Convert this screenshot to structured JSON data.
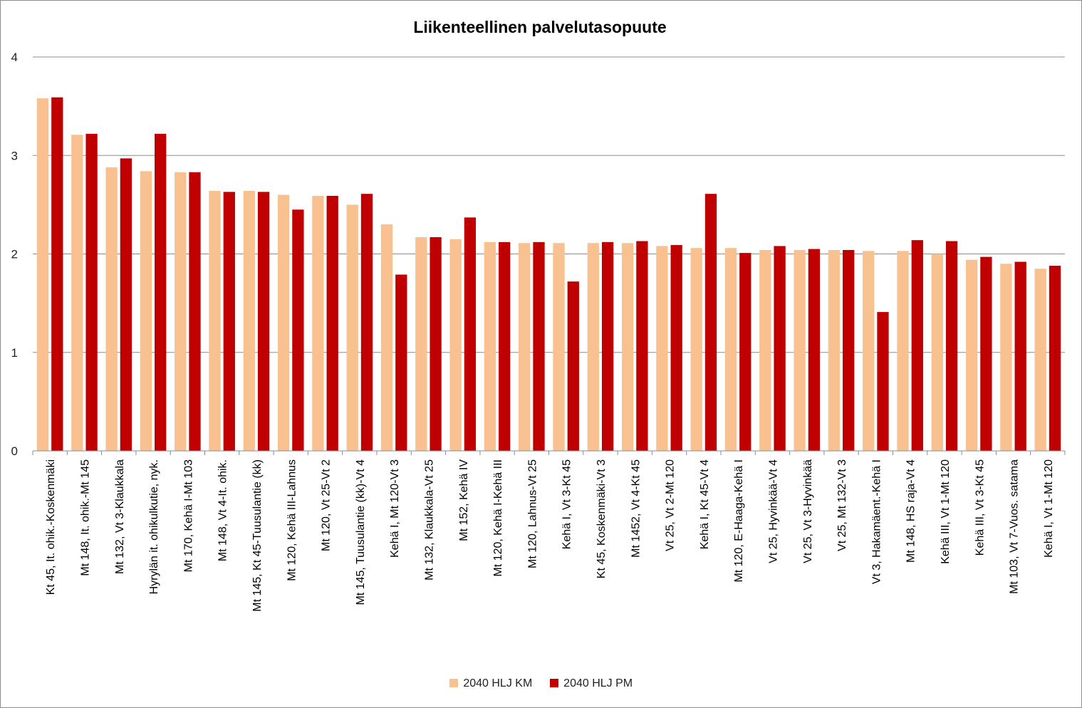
{
  "chart_data": {
    "type": "bar",
    "title": "Liikenteellinen palvelutasopuute",
    "xlabel": "",
    "ylabel": "",
    "ylim": [
      0,
      4
    ],
    "yticks": [
      "0",
      "1",
      "2",
      "3",
      "4"
    ],
    "grid": true,
    "legend_position": "bottom",
    "categories": [
      "Kt 45, It. ohik.-Koskenmäki",
      "Mt 148, It. ohik.-Mt 145",
      "Mt 132, Vt 3-Klaukkala",
      "Hyrylän it. ohikulkutie, nyk.",
      "Mt 170, Kehä I-Mt 103",
      "Mt 148, Vt 4-It. ohik.",
      "Mt 145, Kt 45-Tuusulantie (kk)",
      "Mt 120, Kehä III-Lahnus",
      "Mt 120, Vt 25-Vt 2",
      "Mt 145, Tuusulantie (kk)-Vt 4",
      "Kehä I, Mt 120-Vt 3",
      "Mt 132, Klaukkala-Vt 25",
      "Mt 152, Kehä IV",
      "Mt 120, Kehä I-Kehä III",
      "Mt 120, Lahnus-Vt 25",
      "Kehä I, Vt 3-Kt 45",
      "Kt 45, Koskenmäki-Vt 3",
      "Mt 1452, Vt 4-Kt 45",
      "Vt 25, Vt 2-Mt 120",
      "Kehä I, Kt 45-Vt 4",
      "Mt 120, E-Haaga-Kehä I",
      "Vt 25, Hyvinkää-Vt 4",
      "Vt 25, Vt 3-Hyvinkää",
      "Vt 25, Mt 132-Vt 3",
      "Vt 3, Hakamäent.-Kehä I",
      "Mt 148, HS raja-Vt 4",
      "Kehä III, Vt 1-Mt 120",
      "Kehä III, Vt 3-Kt 45",
      "Mt 103, Vt 7-Vuos. satama",
      "Kehä I, Vt 1-Mt 120"
    ],
    "series": [
      {
        "name": "2040 HLJ KM",
        "color": "#f9c090",
        "values": [
          3.58,
          3.21,
          2.88,
          2.84,
          2.83,
          2.64,
          2.64,
          2.6,
          2.59,
          2.5,
          2.3,
          2.17,
          2.15,
          2.12,
          2.11,
          2.11,
          2.11,
          2.11,
          2.08,
          2.06,
          2.06,
          2.04,
          2.04,
          2.04,
          2.03,
          2.03,
          2.0,
          1.94,
          1.9,
          1.85
        ]
      },
      {
        "name": "2040 HLJ PM",
        "color": "#c00000",
        "values": [
          3.59,
          3.22,
          2.97,
          3.22,
          2.83,
          2.63,
          2.63,
          2.45,
          2.59,
          2.61,
          1.79,
          2.17,
          2.37,
          2.12,
          2.12,
          1.72,
          2.12,
          2.13,
          2.09,
          2.61,
          2.01,
          2.08,
          2.05,
          2.04,
          1.41,
          2.14,
          2.13,
          1.97,
          1.92,
          1.88
        ]
      }
    ]
  }
}
